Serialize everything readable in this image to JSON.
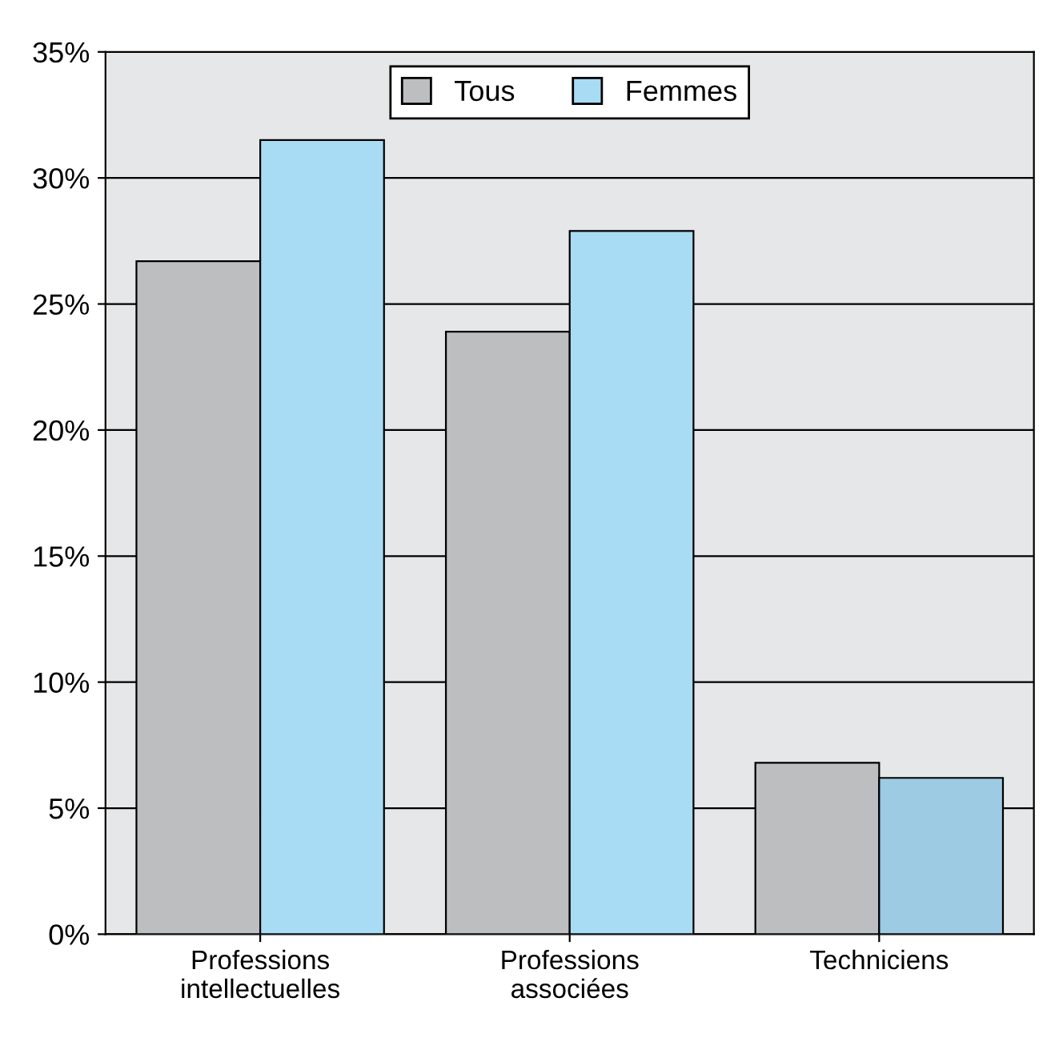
{
  "chart_data": {
    "type": "bar",
    "categories": [
      "Professions\nintellectuelles",
      "Professions\nassociées",
      "Techniciens"
    ],
    "series": [
      {
        "name": "Tous",
        "color": "#bcbec0",
        "values": [
          26.7,
          23.9,
          6.8
        ]
      },
      {
        "name": "Femmes",
        "color": "#a8dcf5",
        "colors": [
          "#a8dcf5",
          "#a8dcf5",
          "#9ccbe3"
        ],
        "values": [
          31.5,
          27.9,
          6.2
        ]
      }
    ],
    "ylim": [
      0,
      35
    ],
    "yticks": [
      {
        "value": 0,
        "label": "0%"
      },
      {
        "value": 5,
        "label": "5%"
      },
      {
        "value": 10,
        "label": "10%"
      },
      {
        "value": 15,
        "label": "15%"
      },
      {
        "value": 20,
        "label": "20%"
      },
      {
        "value": 25,
        "label": "25%"
      },
      {
        "value": 30,
        "label": "30%"
      },
      {
        "value": 35,
        "label": "35%"
      }
    ],
    "grid": "y",
    "legend": "top"
  }
}
